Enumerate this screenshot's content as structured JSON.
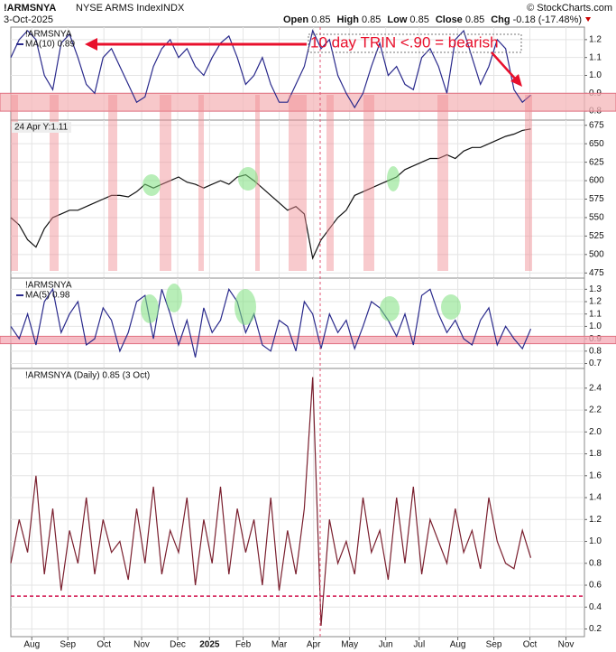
{
  "header": {
    "symbol": "!ARMSNYA",
    "name": "NYSE ARMS Index",
    "exchange": "INDX",
    "date": "3-Oct-2025",
    "quote": [
      {
        "label": "Open",
        "value": "0.85"
      },
      {
        "label": "High",
        "value": "0.85"
      },
      {
        "label": "Low",
        "value": "0.85"
      },
      {
        "label": "Close",
        "value": "0.85"
      },
      {
        "label": "Chg",
        "value": "-0.18 (-17.48%)"
      }
    ],
    "credit": "© StockCharts.com"
  },
  "chart_data": [
    {
      "type": "line",
      "title": "!ARMSNYA",
      "annotation": "10 day TRIN <.90 = bearish",
      "series": [
        {
          "name": "MA(10) 0.89",
          "color": "#2a2a8c",
          "values": [
            1.1,
            1.2,
            1.25,
            1.2,
            1.0,
            0.92,
            1.18,
            1.23,
            1.1,
            0.95,
            0.9,
            1.1,
            1.15,
            1.05,
            0.95,
            0.85,
            0.88,
            1.05,
            1.15,
            1.2,
            1.1,
            1.15,
            1.05,
            1.0,
            1.1,
            1.18,
            1.22,
            1.1,
            0.95,
            1.0,
            1.1,
            0.95,
            0.85,
            0.85,
            0.95,
            1.05,
            1.25,
            1.15,
            1.2,
            1.0,
            0.9,
            0.82,
            0.9,
            1.05,
            1.18,
            1.0,
            1.05,
            0.95,
            0.92,
            1.1,
            1.15,
            1.05,
            0.9,
            1.2,
            1.25,
            1.1,
            0.95,
            1.05,
            1.2,
            1.15,
            0.92,
            0.85,
            0.89
          ]
        }
      ],
      "band": [
        0.8,
        0.9
      ],
      "band_color": "#f4b6b8",
      "ylim": [
        0.75,
        1.27
      ],
      "yticks": [
        0.8,
        0.9,
        {
          "value": 1,
          "label": "1.0"
        },
        1.1,
        1.2
      ],
      "grid": true
    },
    {
      "type": "line",
      "annotation": "24 Apr Y:1.11",
      "series": [
        {
          "color": "#111111",
          "values": [
            550,
            540,
            520,
            510,
            535,
            550,
            555,
            560,
            560,
            565,
            570,
            575,
            580,
            580,
            578,
            585,
            595,
            590,
            595,
            600,
            605,
            598,
            595,
            590,
            595,
            600,
            595,
            605,
            608,
            600,
            590,
            580,
            570,
            560,
            565,
            555,
            495,
            520,
            535,
            550,
            560,
            580,
            585,
            590,
            595,
            600,
            605,
            615,
            620,
            625,
            630,
            630,
            635,
            630,
            640,
            645,
            645,
            650,
            655,
            660,
            663,
            668,
            670
          ]
        }
      ],
      "ylim": [
        468,
        682
      ],
      "yticks": [
        475,
        500,
        525,
        550,
        575,
        600,
        625,
        650,
        675
      ],
      "grid": true
    },
    {
      "type": "line",
      "title": "!ARMSNYA",
      "series": [
        {
          "name": "MA(5) 0.98",
          "color": "#2a2a8c",
          "values": [
            1.0,
            0.9,
            1.1,
            0.85,
            1.2,
            1.3,
            0.95,
            1.1,
            1.2,
            0.85,
            0.9,
            1.15,
            1.05,
            0.8,
            0.95,
            1.2,
            1.25,
            0.9,
            1.3,
            1.1,
            0.85,
            1.05,
            0.75,
            1.15,
            0.95,
            1.05,
            1.3,
            1.2,
            0.95,
            1.1,
            0.85,
            0.8,
            1.05,
            1.0,
            0.8,
            1.2,
            1.1,
            0.82,
            1.1,
            0.95,
            1.05,
            0.82,
            1.0,
            1.2,
            1.15,
            1.05,
            0.92,
            1.1,
            0.85,
            1.25,
            1.3,
            1.1,
            0.95,
            1.05,
            0.9,
            0.85,
            1.05,
            1.15,
            0.85,
            1.0,
            0.9,
            0.82,
            0.98
          ]
        }
      ],
      "band": [
        0.86,
        0.92
      ],
      "band_color": "#f4a8b4",
      "ylim": [
        0.66,
        1.39
      ],
      "yticks": [
        0.7,
        0.8,
        0.9,
        {
          "value": 1,
          "label": "1.0"
        },
        1.1,
        1.2,
        1.3
      ],
      "grid": true
    },
    {
      "type": "line",
      "title": "!ARMSNYA (Daily) 0.85 (3 Oct)",
      "series": [
        {
          "color": "#7a1f2e",
          "values": [
            0.8,
            1.2,
            0.9,
            1.6,
            0.7,
            1.3,
            0.55,
            1.1,
            0.8,
            1.4,
            0.7,
            1.2,
            0.9,
            1.0,
            0.65,
            1.3,
            0.8,
            1.5,
            0.7,
            1.1,
            0.9,
            1.4,
            0.6,
            1.2,
            0.8,
            1.5,
            0.7,
            1.3,
            0.9,
            1.2,
            0.6,
            1.4,
            0.55,
            1.1,
            0.7,
            1.3,
            2.5,
            0.23,
            1.2,
            0.8,
            1.0,
            0.7,
            1.4,
            0.9,
            1.1,
            0.65,
            1.4,
            0.8,
            1.5,
            0.7,
            1.2,
            1.0,
            0.8,
            1.3,
            0.9,
            1.1,
            0.75,
            1.4,
            1.0,
            0.8,
            0.75,
            1.1,
            0.85
          ]
        }
      ],
      "reference_line": 0.5,
      "reference_color": "#d0104c",
      "ylim": [
        0.13,
        2.58
      ],
      "yticks": [
        0.2,
        0.4,
        0.6,
        0.8,
        {
          "value": 1,
          "label": "1.0"
        },
        1.2,
        1.4,
        1.6,
        1.8,
        {
          "value": 2,
          "label": "2.0"
        },
        2.2,
        2.4
      ],
      "grid": true,
      "xlim": [
        0,
        68.4
      ],
      "xticks": [
        {
          "value": 2.5,
          "label": "Aug"
        },
        {
          "value": 6.8,
          "label": "Sep"
        },
        {
          "value": 11.1,
          "label": "Oct"
        },
        {
          "value": 15.6,
          "label": "Nov"
        },
        {
          "value": 19.9,
          "label": "Dec"
        },
        {
          "value": 23.7,
          "label": "2025"
        },
        {
          "value": 27.7,
          "label": "Feb"
        },
        {
          "value": 32,
          "label": "Mar"
        },
        {
          "value": 36.1,
          "label": "Apr"
        },
        {
          "value": 40.4,
          "label": "May"
        },
        {
          "value": 44.7,
          "label": "Jun"
        },
        {
          "value": 48.7,
          "label": "Jul"
        },
        {
          "value": 53.3,
          "label": "Aug"
        },
        {
          "value": 57.6,
          "label": "Sep"
        },
        {
          "value": 61.9,
          "label": "Oct"
        },
        {
          "value": 66.2,
          "label": "Nov"
        }
      ]
    }
  ]
}
